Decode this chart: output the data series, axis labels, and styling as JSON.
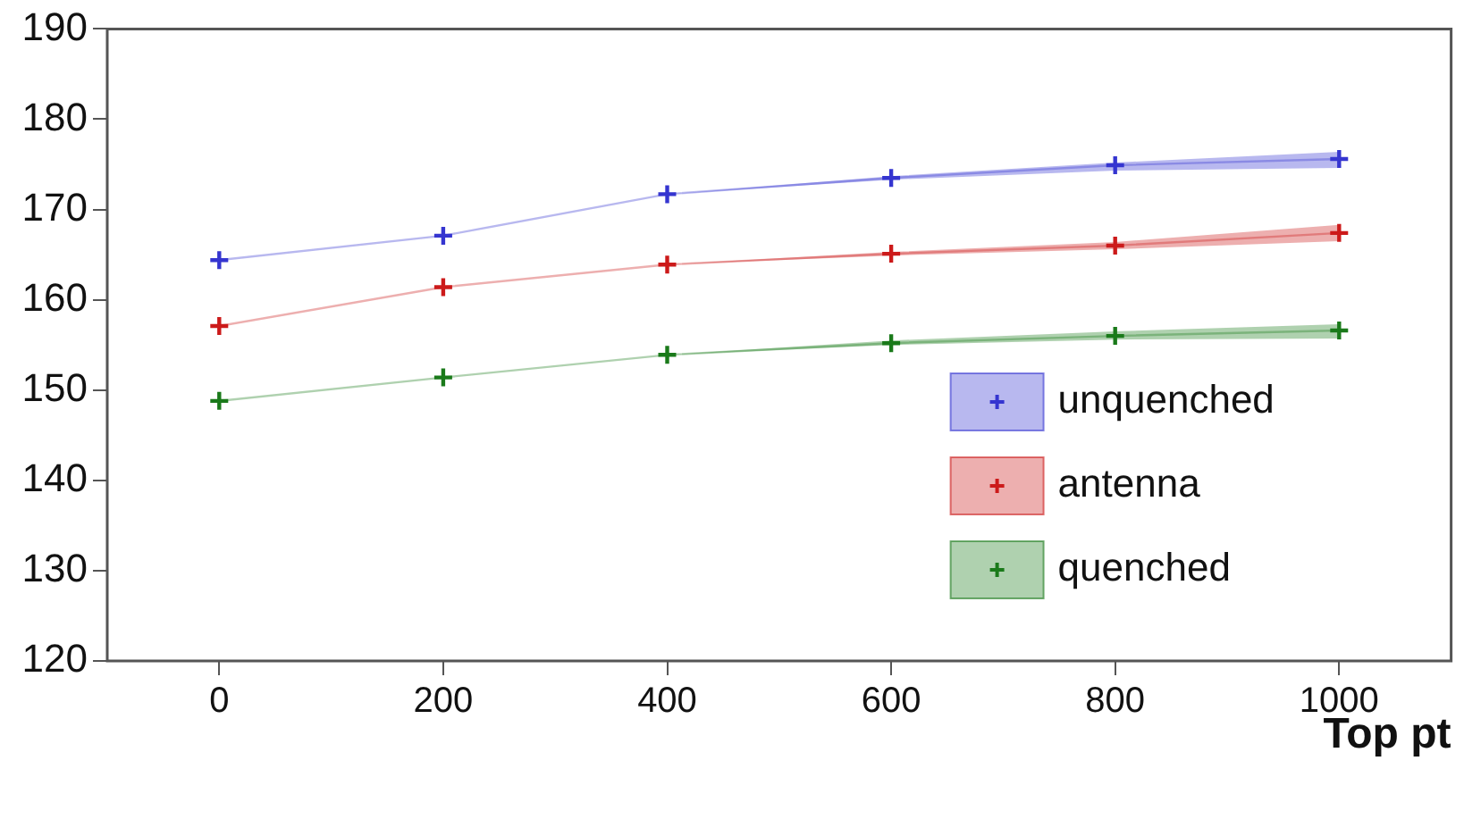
{
  "chart_data": {
    "type": "line",
    "xlabel": "Top pt",
    "x": [
      0,
      200,
      400,
      600,
      800,
      1000
    ],
    "xlim": [
      -100,
      1100
    ],
    "xticks": [
      0,
      200,
      400,
      600,
      800,
      1000
    ],
    "ylim": [
      120,
      190
    ],
    "yticks": [
      120,
      130,
      140,
      150,
      160,
      170,
      180,
      190
    ],
    "grid": false,
    "legend": "bottom right",
    "marker": "cross",
    "line_style": "solid",
    "series": [
      {
        "name": "unquenched",
        "color": "#3535d0",
        "values": [
          164.4,
          167.1,
          171.7,
          173.5,
          174.9,
          175.6
        ],
        "lower": [
          164.4,
          167.1,
          171.7,
          173.3,
          174.3,
          174.6
        ],
        "upper": [
          164.4,
          167.1,
          171.7,
          173.7,
          175.2,
          176.4
        ]
      },
      {
        "name": "antenna",
        "color": "#cc1a1a",
        "values": [
          157.1,
          161.4,
          163.9,
          165.1,
          166.0,
          167.4
        ],
        "lower": [
          157.1,
          161.4,
          163.9,
          164.9,
          165.6,
          166.5
        ],
        "upper": [
          157.1,
          161.4,
          163.9,
          165.3,
          166.4,
          168.3
        ]
      },
      {
        "name": "quenched",
        "color": "#1a7a1a",
        "values": [
          148.8,
          151.4,
          153.9,
          155.2,
          156.0,
          156.6
        ],
        "lower": [
          148.8,
          151.4,
          153.9,
          155.0,
          155.6,
          155.7
        ],
        "upper": [
          148.8,
          151.4,
          153.9,
          155.5,
          156.5,
          157.3
        ]
      }
    ]
  }
}
